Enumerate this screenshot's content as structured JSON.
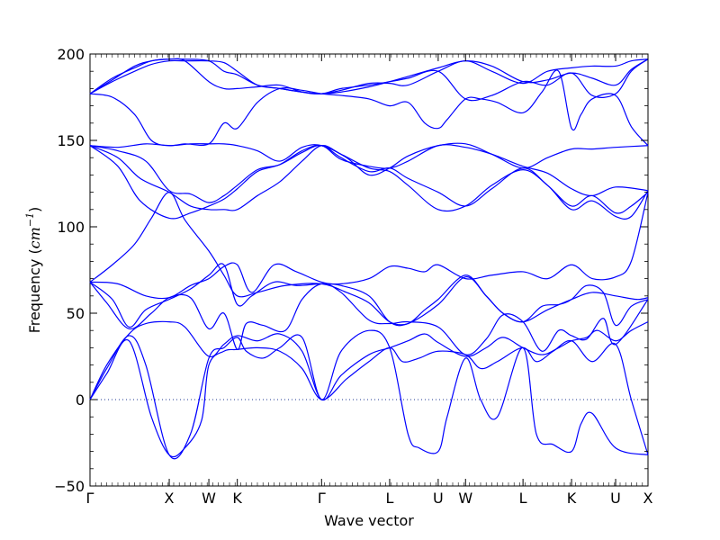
{
  "chart_data": {
    "type": "line",
    "title": "",
    "xlabel": "Wave vector",
    "ylabel": "Frequency (cm⁻¹)",
    "ylabel_parts": {
      "main": "Frequency (",
      "unit": "cm",
      "exp": "−1",
      "close": ")"
    },
    "ylim": [
      -50,
      200
    ],
    "yticks": [
      -50,
      0,
      50,
      100,
      150,
      200
    ],
    "ytick_labels": [
      "−50",
      "0",
      "50",
      "100",
      "150",
      "200"
    ],
    "xlim": [
      0,
      100
    ],
    "xticks": [
      {
        "label": "Γ",
        "x": 0
      },
      {
        "label": "X",
        "x": 14.2
      },
      {
        "label": "W",
        "x": 21.3
      },
      {
        "label": "K",
        "x": 26.4
      },
      {
        "label": "Γ",
        "x": 41.5
      },
      {
        "label": "L",
        "x": 53.7
      },
      {
        "label": "U",
        "x": 62.4
      },
      {
        "label": "W",
        "x": 67.3
      },
      {
        "label": "L",
        "x": 77.6
      },
      {
        "label": "K",
        "x": 86.3
      },
      {
        "label": "U",
        "x": 94.2
      },
      {
        "label": "X",
        "x": 100
      }
    ],
    "color": "#0000ff",
    "zero_line": true,
    "series": [
      {
        "x": [
          0,
          3,
          7,
          11,
          14.2,
          17,
          20,
          21.3,
          24,
          26.4,
          30,
          34,
          38,
          41.5,
          46,
          50,
          53.7,
          56,
          59,
          62.4,
          67.3,
          70,
          73,
          77.6,
          80,
          83,
          86.3,
          90,
          94.2,
          97,
          100
        ],
        "y": [
          0,
          15,
          34,
          -10,
          -32,
          -28,
          -12,
          20,
          28,
          29,
          30,
          28,
          18,
          0,
          12,
          22,
          30,
          22,
          24,
          28,
          26,
          18,
          22,
          30,
          22,
          28,
          34,
          22,
          32,
          0,
          -32
        ]
      },
      {
        "x": [
          0,
          3,
          7,
          10,
          14.2,
          18,
          21.3,
          24,
          26.4,
          28,
          31,
          34,
          38,
          41.5,
          45,
          50,
          53.7,
          57,
          59,
          62.4,
          64,
          67.3,
          70,
          73,
          77.6,
          80,
          83,
          86.3,
          88,
          90,
          94.2,
          100
        ],
        "y": [
          0,
          18,
          37,
          20,
          -32,
          -20,
          24,
          30,
          36,
          28,
          24,
          30,
          36,
          0,
          28,
          40,
          30,
          -20,
          -28,
          -30,
          -10,
          24,
          0,
          -10,
          30,
          -20,
          -26,
          -30,
          -14,
          -8,
          -28,
          -32
        ]
      },
      {
        "x": [
          0,
          3,
          7,
          10,
          14.2,
          17,
          21.3,
          24,
          26.4,
          30,
          34,
          38,
          41.5,
          45,
          50,
          53.7,
          57,
          60,
          62.4,
          67.3,
          71,
          74,
          77.6,
          81,
          84,
          86.3,
          89,
          91,
          94.2,
          97,
          100
        ],
        "y": [
          0,
          20,
          38,
          44,
          45,
          42,
          25,
          32,
          37,
          34,
          38,
          28,
          0,
          14,
          26,
          30,
          34,
          38,
          33,
          25,
          30,
          36,
          30,
          26,
          30,
          34,
          36,
          40,
          34,
          40,
          45
        ]
      },
      {
        "x": [
          0,
          3,
          7,
          11,
          14.2,
          18,
          21.3,
          24,
          26.4,
          28,
          31,
          35,
          38,
          41.5,
          45,
          50,
          53.7,
          57,
          62.4,
          67.3,
          71,
          74,
          77.6,
          81,
          84,
          86.3,
          89,
          92,
          94.2,
          100
        ],
        "y": [
          68,
          56,
          41,
          50,
          59,
          59,
          41,
          50,
          29,
          44,
          43,
          40,
          58,
          67,
          62,
          46,
          44,
          45,
          42,
          26,
          35,
          49,
          45,
          28,
          40,
          37,
          35,
          47,
          32,
          58
        ]
      },
      {
        "x": [
          0,
          4,
          7,
          10,
          14.2,
          18,
          21.3,
          24,
          26.4,
          29,
          33,
          37,
          41.5,
          45,
          50,
          53.7,
          57,
          62.4,
          67.3,
          71,
          74,
          77.6,
          81,
          84,
          86.3,
          89,
          92,
          94.2,
          97,
          100
        ],
        "y": [
          68,
          58,
          42,
          52,
          58,
          64,
          72,
          78,
          55,
          60,
          68,
          66,
          67,
          66,
          60,
          45,
          44,
          55,
          71,
          60,
          50,
          45,
          54,
          55,
          58,
          66,
          62,
          43,
          54,
          58
        ]
      },
      {
        "x": [
          0,
          5,
          10,
          14.2,
          18,
          21.3,
          24,
          26.4,
          29,
          33,
          37,
          41.5,
          45,
          50,
          53.7,
          57,
          60,
          62.4,
          67.3,
          72,
          77.6,
          82,
          86.3,
          90,
          94.2,
          97,
          100
        ],
        "y": [
          68,
          67,
          60,
          59,
          66,
          70,
          77,
          78,
          62,
          78,
          74,
          68,
          67,
          70,
          77,
          76,
          74,
          78,
          70,
          72,
          74,
          70,
          78,
          70,
          71,
          80,
          120
        ]
      },
      {
        "x": [
          0,
          4,
          8,
          11,
          14.2,
          17,
          21.3,
          24,
          26.4,
          30,
          35,
          41.5,
          46,
          50,
          53.7,
          57,
          60,
          62.4,
          67.3,
          71,
          74,
          77.6,
          82,
          86.3,
          90,
          94.2,
          98,
          100
        ],
        "y": [
          68,
          78,
          90,
          105,
          120,
          104,
          86,
          72,
          60,
          62,
          66,
          67,
          62,
          56,
          45,
          44,
          52,
          58,
          72,
          60,
          50,
          45,
          52,
          58,
          62,
          60,
          58,
          59
        ]
      },
      {
        "x": [
          0,
          5,
          9,
          14.2,
          18,
          21.3,
          24,
          26.4,
          30,
          34,
          38,
          41.5,
          45,
          50,
          53.7,
          57,
          62.4,
          67.3,
          72,
          77.6,
          82,
          86.3,
          90,
          94.2,
          97,
          100
        ],
        "y": [
          147,
          135,
          115,
          105,
          108,
          112,
          116,
          122,
          132,
          136,
          144,
          147,
          140,
          132,
          134,
          128,
          120,
          112,
          122,
          134,
          124,
          112,
          118,
          108,
          112,
          120
        ]
      },
      {
        "x": [
          0,
          5,
          9,
          14.2,
          18,
          21.3,
          24,
          26.4,
          30,
          34,
          38,
          41.5,
          45,
          50,
          53.7,
          57,
          62.4,
          67.3,
          72,
          77.6,
          82,
          86.3,
          90,
          94.2,
          97,
          100
        ],
        "y": [
          147,
          140,
          128,
          120,
          112,
          110,
          110,
          110,
          118,
          126,
          138,
          147,
          142,
          134,
          132,
          124,
          110,
          112,
          124,
          133,
          124,
          110,
          115,
          106,
          106,
          121
        ]
      },
      {
        "x": [
          0,
          5,
          10,
          14.2,
          18,
          21.3,
          24,
          26.4,
          30,
          34,
          38,
          41.5,
          45,
          50,
          53.7,
          57,
          62.4,
          67.3,
          72,
          77.6,
          82,
          86.3,
          90,
          94.2,
          100
        ],
        "y": [
          147,
          144,
          138,
          121,
          119,
          114,
          118,
          124,
          133,
          136,
          143,
          147,
          139,
          135,
          134,
          138,
          147,
          146,
          142,
          135,
          131,
          122,
          118,
          123,
          121
        ]
      },
      {
        "x": [
          0,
          5,
          10,
          14.2,
          18,
          21.3,
          24,
          26.4,
          30,
          34,
          38,
          41.5,
          46,
          50,
          53.7,
          57,
          62.4,
          67.3,
          72,
          77.6,
          82,
          86.3,
          90,
          94.2,
          100
        ],
        "y": [
          147,
          146,
          148,
          147,
          148,
          148,
          148,
          147,
          144,
          138,
          146,
          147,
          140,
          130,
          134,
          141,
          147,
          148,
          142,
          134,
          140,
          145,
          145,
          146,
          147
        ]
      },
      {
        "x": [
          0,
          4,
          8,
          11,
          14.2,
          17,
          21.3,
          24,
          26.4,
          30,
          34,
          38,
          41.5,
          45,
          50,
          53.7,
          57,
          60,
          62.4,
          64,
          67.3,
          70,
          73,
          77.6,
          81,
          84,
          86.3,
          88,
          90,
          94.2,
          97,
          100
        ],
        "y": [
          177,
          175,
          165,
          150,
          147,
          148,
          148,
          160,
          157,
          172,
          180,
          179,
          177,
          176,
          174,
          170,
          172,
          160,
          157,
          162,
          174,
          174,
          172,
          166,
          178,
          190,
          157,
          165,
          174,
          176,
          158,
          147
        ]
      },
      {
        "x": [
          0,
          4,
          8,
          11,
          14.2,
          17,
          21.3,
          24,
          26.4,
          30,
          34,
          38,
          41.5,
          45,
          50,
          53.7,
          57,
          62.4,
          67.3,
          72,
          77.6,
          82,
          86.3,
          90,
          94.2,
          97,
          100
        ],
        "y": [
          177,
          186,
          192,
          196,
          197,
          196,
          184,
          180,
          180,
          181,
          182,
          178,
          177,
          180,
          182,
          184,
          186,
          190,
          174,
          176,
          184,
          182,
          189,
          176,
          177,
          190,
          197
        ]
      },
      {
        "x": [
          0,
          4,
          8,
          11,
          14.2,
          17,
          21.3,
          24,
          26.4,
          30,
          34,
          38,
          41.5,
          45,
          50,
          53.7,
          57,
          62.4,
          67.3,
          72,
          77.6,
          82,
          86.3,
          90,
          94.2,
          97,
          100
        ],
        "y": [
          177,
          185,
          193,
          196,
          197,
          197,
          196,
          190,
          188,
          182,
          180,
          178,
          177,
          179,
          183,
          183,
          182,
          190,
          196,
          190,
          183,
          190,
          192,
          193,
          193,
          196,
          197
        ]
      },
      {
        "x": [
          0,
          4,
          8,
          11,
          14.2,
          17,
          21.3,
          24,
          26.4,
          30,
          34,
          38,
          41.5,
          45,
          50,
          53.7,
          57,
          62.4,
          67.3,
          72,
          77.6,
          82,
          86.3,
          90,
          94.2,
          97,
          100
        ],
        "y": [
          177,
          184,
          190,
          194,
          196,
          196,
          196,
          195,
          190,
          182,
          180,
          178,
          177,
          178,
          181,
          184,
          187,
          192,
          196,
          193,
          184,
          185,
          189,
          186,
          182,
          191,
          197
        ]
      }
    ]
  }
}
